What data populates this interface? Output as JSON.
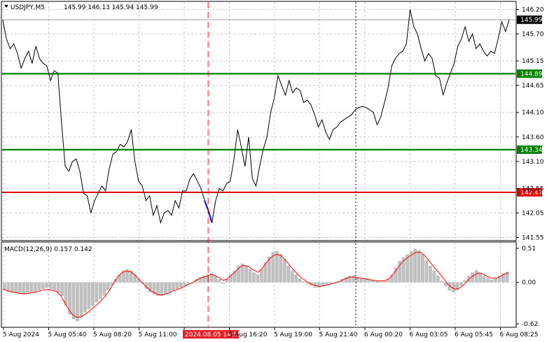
{
  "header": {
    "symbol": "USDJPY,M5",
    "ohlc": "145.99 146.13 145.94 145.99"
  },
  "macd_header": {
    "label": "MACD(12,26,9) 0.157 0.142"
  },
  "colors": {
    "price_line": "#000000",
    "highlight_segment": "#0000cc",
    "green_level": "#008000",
    "red_level": "#dd0000",
    "macd_histogram": "#c0c0c0",
    "macd_signal": "#ff0000",
    "grid": "#c8c8c8",
    "red_dashed_marker": "#ff0000",
    "current_price_label_bg": "#000000"
  },
  "chart_data": [
    {
      "type": "line",
      "series_name": "USDJPY,M5 price",
      "y_ticks": [
        "146.20",
        "145.70",
        "145.15",
        "144.65",
        "144.10",
        "143.60",
        "143.10",
        "142.55",
        "142.05",
        "141.55"
      ],
      "ylim": [
        141.5,
        146.35
      ],
      "levels": [
        {
          "label": "144.89",
          "value": 144.89,
          "color": "green"
        },
        {
          "label": "143.34",
          "value": 143.34,
          "color": "green"
        },
        {
          "label": "142.47",
          "value": 142.47,
          "color": "red"
        }
      ],
      "current_price": {
        "label": "145.99",
        "value": 145.99
      },
      "x_labels": [
        "5 Aug 2024",
        "5 Aug 05:40",
        "5 Aug 08:20",
        "5 Aug 11:00",
        "2024.08.05 14:55",
        "5 Aug 16:20",
        "5 Aug 19:00",
        "5 Aug 21:40",
        "6 Aug 00:20",
        "6 Aug 03:05",
        "6 Aug 05:45",
        "6 Aug 08:25"
      ],
      "highlighted_x_label": "2024.08.05 14:55",
      "grid": true,
      "close_values": [
        145.98,
        145.6,
        145.4,
        145.5,
        145.3,
        145.0,
        145.2,
        145.35,
        145.1,
        145.45,
        145.2,
        145.1,
        145.05,
        144.75,
        144.95,
        144.9,
        143.9,
        143.0,
        142.9,
        143.1,
        143.15,
        142.9,
        142.45,
        142.4,
        142.05,
        142.3,
        142.45,
        142.6,
        142.5,
        142.95,
        143.25,
        143.3,
        143.45,
        143.4,
        143.5,
        143.75,
        143.1,
        142.7,
        142.6,
        142.3,
        142.4,
        142.0,
        142.2,
        141.85,
        142.05,
        142.1,
        142.0,
        142.3,
        142.15,
        142.5,
        142.5,
        142.75,
        142.85,
        142.7,
        142.55,
        142.3,
        142.1,
        141.85,
        142.3,
        142.55,
        142.5,
        142.65,
        142.7,
        143.15,
        143.75,
        143.4,
        143.0,
        143.6,
        142.75,
        142.6,
        143.0,
        143.35,
        143.6,
        144.1,
        144.4,
        144.85,
        144.65,
        144.45,
        144.75,
        144.5,
        144.6,
        144.55,
        144.3,
        144.35,
        144.25,
        144.05,
        143.8,
        143.95,
        143.7,
        143.55,
        143.75,
        143.8,
        143.9,
        143.95,
        144.0,
        144.05,
        144.15,
        144.2,
        144.22,
        144.2,
        144.15,
        144.1,
        143.85,
        144.0,
        144.3,
        144.6,
        145.05,
        145.2,
        145.3,
        145.35,
        145.5,
        146.2,
        145.85,
        145.7,
        145.4,
        145.15,
        145.3,
        145.2,
        144.85,
        144.8,
        144.45,
        144.7,
        144.9,
        145.1,
        145.45,
        145.6,
        145.85,
        145.55,
        145.7,
        145.4,
        145.5,
        145.35,
        145.25,
        145.35,
        145.3,
        145.6,
        145.95,
        145.75,
        145.99
      ]
    },
    {
      "type": "bar",
      "series_name": "MACD(12,26,9)",
      "y_ticks": [
        "0.51",
        "0.00",
        "-0.62"
      ],
      "ylim": [
        -0.62,
        0.51
      ],
      "macd_value": 0.157,
      "signal_value": 0.142,
      "histogram_values": [
        -0.12,
        -0.14,
        -0.15,
        -0.16,
        -0.17,
        -0.18,
        -0.16,
        -0.15,
        -0.14,
        -0.12,
        -0.1,
        -0.08,
        -0.1,
        -0.12,
        -0.15,
        -0.2,
        -0.35,
        -0.48,
        -0.55,
        -0.58,
        -0.52,
        -0.45,
        -0.4,
        -0.35,
        -0.3,
        -0.25,
        -0.2,
        -0.12,
        -0.05,
        0.05,
        0.12,
        0.18,
        0.2,
        0.18,
        0.12,
        0.05,
        -0.02,
        -0.1,
        -0.15,
        -0.18,
        -0.2,
        -0.2,
        -0.18,
        -0.15,
        -0.12,
        -0.1,
        -0.08,
        -0.05,
        -0.02,
        0.0,
        0.05,
        0.08,
        0.1,
        0.12,
        0.14,
        0.1,
        0.05,
        -0.02,
        0.05,
        0.12,
        0.18,
        0.25,
        0.28,
        0.25,
        0.2,
        0.15,
        0.12,
        0.2,
        0.3,
        0.38,
        0.45,
        0.47,
        0.43,
        0.35,
        0.25,
        0.18,
        0.12,
        0.06,
        0.02,
        -0.02,
        -0.05,
        -0.08,
        -0.08,
        -0.06,
        -0.04,
        -0.02,
        0.0,
        0.02,
        0.05,
        0.08,
        0.1,
        0.1,
        0.08,
        0.06,
        0.05,
        0.04,
        0.03,
        0.02,
        0.01,
        0.02,
        0.05,
        0.12,
        0.22,
        0.32,
        0.38,
        0.42,
        0.47,
        0.5,
        0.48,
        0.42,
        0.33,
        0.25,
        0.18,
        0.1,
        0.02,
        -0.06,
        -0.12,
        -0.15,
        -0.12,
        -0.05,
        0.03,
        0.1,
        0.15,
        0.18,
        0.15,
        0.1,
        0.06,
        0.04,
        0.06,
        0.1,
        0.14,
        0.16
      ],
      "signal_values": [
        -0.1,
        -0.12,
        -0.14,
        -0.15,
        -0.16,
        -0.17,
        -0.17,
        -0.16,
        -0.15,
        -0.14,
        -0.12,
        -0.11,
        -0.11,
        -0.12,
        -0.14,
        -0.2,
        -0.3,
        -0.4,
        -0.48,
        -0.52,
        -0.52,
        -0.49,
        -0.45,
        -0.4,
        -0.35,
        -0.3,
        -0.24,
        -0.17,
        -0.08,
        0.02,
        0.1,
        0.15,
        0.17,
        0.16,
        0.12,
        0.06,
        0.0,
        -0.06,
        -0.11,
        -0.15,
        -0.18,
        -0.19,
        -0.18,
        -0.16,
        -0.13,
        -0.11,
        -0.09,
        -0.06,
        -0.03,
        -0.01,
        0.03,
        0.06,
        0.08,
        0.1,
        0.12,
        0.1,
        0.07,
        0.03,
        0.05,
        0.1,
        0.15,
        0.21,
        0.25,
        0.25,
        0.22,
        0.18,
        0.15,
        0.2,
        0.28,
        0.35,
        0.4,
        0.42,
        0.4,
        0.34,
        0.27,
        0.2,
        0.14,
        0.08,
        0.04,
        0.0,
        -0.03,
        -0.05,
        -0.06,
        -0.05,
        -0.04,
        -0.02,
        -0.01,
        0.01,
        0.04,
        0.06,
        0.08,
        0.08,
        0.07,
        0.06,
        0.05,
        0.04,
        0.03,
        0.02,
        0.02,
        0.03,
        0.06,
        0.12,
        0.2,
        0.28,
        0.34,
        0.38,
        0.42,
        0.45,
        0.45,
        0.41,
        0.34,
        0.27,
        0.2,
        0.13,
        0.06,
        -0.02,
        -0.07,
        -0.1,
        -0.09,
        -0.05,
        0.01,
        0.07,
        0.11,
        0.14,
        0.13,
        0.1,
        0.07,
        0.06,
        0.07,
        0.1,
        0.13,
        0.142
      ]
    }
  ]
}
